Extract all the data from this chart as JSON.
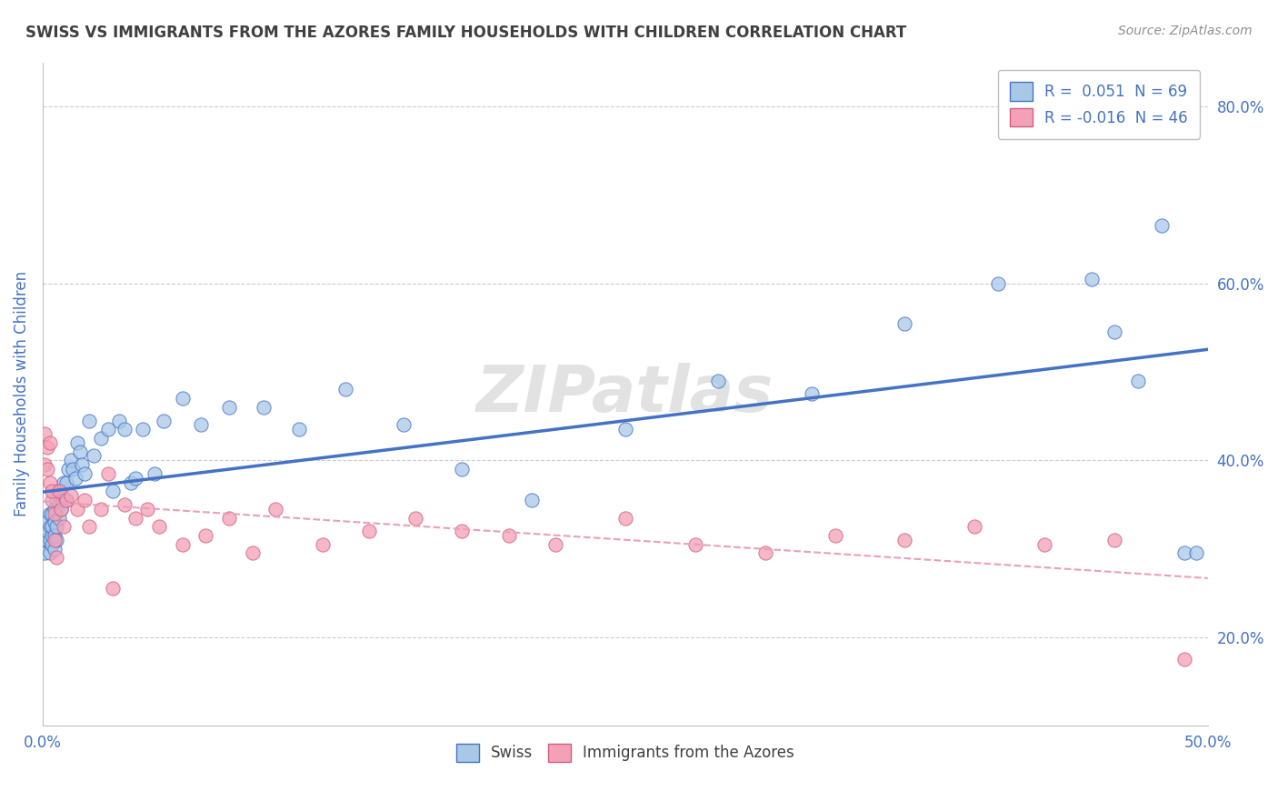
{
  "title": "SWISS VS IMMIGRANTS FROM THE AZORES FAMILY HOUSEHOLDS WITH CHILDREN CORRELATION CHART",
  "source": "Source: ZipAtlas.com",
  "ylabel": "Family Households with Children",
  "xlim": [
    0.0,
    0.5
  ],
  "ylim": [
    0.1,
    0.85
  ],
  "yticks": [
    0.2,
    0.4,
    0.6,
    0.8
  ],
  "ytick_labels": [
    "20.0%",
    "40.0%",
    "60.0%",
    "80.0%"
  ],
  "xticks": [
    0.0,
    0.05,
    0.1,
    0.15,
    0.2,
    0.25,
    0.3,
    0.35,
    0.4,
    0.45,
    0.5
  ],
  "xtick_labels": [
    "0.0%",
    "",
    "",
    "",
    "",
    "",
    "",
    "",
    "",
    "",
    "50.0%"
  ],
  "swiss_R": 0.051,
  "swiss_N": 69,
  "azores_R": -0.016,
  "azores_N": 46,
  "swiss_color": "#a8c8e8",
  "azores_color": "#f4a0b8",
  "trend_swiss_color": "#4472c4",
  "trend_azores_color": "#e8a0b8",
  "background_color": "#ffffff",
  "grid_color": "#c8c8c8",
  "title_color": "#404040",
  "axis_color": "#4472c4",
  "swiss_x": [
    0.001,
    0.001,
    0.002,
    0.002,
    0.002,
    0.003,
    0.003,
    0.003,
    0.003,
    0.004,
    0.004,
    0.004,
    0.004,
    0.005,
    0.005,
    0.005,
    0.005,
    0.006,
    0.006,
    0.006,
    0.007,
    0.007,
    0.007,
    0.008,
    0.008,
    0.009,
    0.009,
    0.01,
    0.01,
    0.011,
    0.012,
    0.013,
    0.014,
    0.015,
    0.016,
    0.017,
    0.018,
    0.02,
    0.022,
    0.025,
    0.028,
    0.03,
    0.033,
    0.035,
    0.038,
    0.04,
    0.043,
    0.048,
    0.052,
    0.06,
    0.068,
    0.08,
    0.095,
    0.11,
    0.13,
    0.155,
    0.18,
    0.21,
    0.25,
    0.29,
    0.33,
    0.37,
    0.41,
    0.45,
    0.46,
    0.47,
    0.48,
    0.49,
    0.495
  ],
  "swiss_y": [
    0.295,
    0.31,
    0.31,
    0.32,
    0.33,
    0.295,
    0.31,
    0.325,
    0.34,
    0.305,
    0.315,
    0.325,
    0.34,
    0.3,
    0.315,
    0.33,
    0.345,
    0.31,
    0.325,
    0.355,
    0.335,
    0.35,
    0.365,
    0.345,
    0.365,
    0.355,
    0.375,
    0.355,
    0.375,
    0.39,
    0.4,
    0.39,
    0.38,
    0.42,
    0.41,
    0.395,
    0.385,
    0.445,
    0.405,
    0.425,
    0.435,
    0.365,
    0.445,
    0.435,
    0.375,
    0.38,
    0.435,
    0.385,
    0.445,
    0.47,
    0.44,
    0.46,
    0.46,
    0.435,
    0.48,
    0.44,
    0.39,
    0.355,
    0.435,
    0.49,
    0.475,
    0.555,
    0.6,
    0.605,
    0.545,
    0.49,
    0.665,
    0.295,
    0.295
  ],
  "azores_x": [
    0.001,
    0.001,
    0.002,
    0.002,
    0.003,
    0.003,
    0.004,
    0.004,
    0.005,
    0.005,
    0.006,
    0.007,
    0.008,
    0.009,
    0.01,
    0.012,
    0.015,
    0.018,
    0.02,
    0.025,
    0.028,
    0.03,
    0.035,
    0.04,
    0.045,
    0.05,
    0.06,
    0.07,
    0.08,
    0.09,
    0.1,
    0.12,
    0.14,
    0.16,
    0.18,
    0.2,
    0.22,
    0.25,
    0.28,
    0.31,
    0.34,
    0.37,
    0.4,
    0.43,
    0.46,
    0.49
  ],
  "azores_y": [
    0.43,
    0.395,
    0.415,
    0.39,
    0.42,
    0.375,
    0.355,
    0.365,
    0.31,
    0.34,
    0.29,
    0.365,
    0.345,
    0.325,
    0.355,
    0.36,
    0.345,
    0.355,
    0.325,
    0.345,
    0.385,
    0.255,
    0.35,
    0.335,
    0.345,
    0.325,
    0.305,
    0.315,
    0.335,
    0.295,
    0.345,
    0.305,
    0.32,
    0.335,
    0.32,
    0.315,
    0.305,
    0.335,
    0.305,
    0.295,
    0.315,
    0.31,
    0.325,
    0.305,
    0.31,
    0.175
  ],
  "watermark": "ZIPatlas"
}
